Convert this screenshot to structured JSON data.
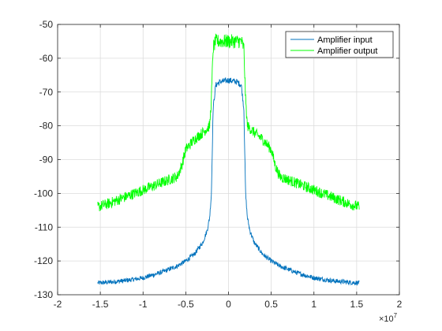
{
  "chart_data": {
    "type": "line",
    "title": "",
    "xlabel": "",
    "ylabel": "",
    "xlim": [
      -2,
      2
    ],
    "ylim": [
      -130,
      -50
    ],
    "x_multiplier": "×10",
    "x_multiplier_exp": "7",
    "xticks": [
      -2,
      -1.5,
      -1,
      -0.5,
      0,
      0.5,
      1,
      1.5,
      2
    ],
    "xtick_labels": [
      "-2",
      "-1.5",
      "-1",
      "-0.5",
      "0",
      "0.5",
      "1",
      "1.5",
      "2"
    ],
    "yticks": [
      -50,
      -60,
      -70,
      -80,
      -90,
      -100,
      -110,
      -120,
      -130
    ],
    "ytick_labels": [
      "-50",
      "-60",
      "-70",
      "-80",
      "-90",
      "-100",
      "-110",
      "-120",
      "-130"
    ],
    "grid": true,
    "legend_position": "top-right",
    "series": [
      {
        "name": "Amplifier input",
        "color": "#0072BD",
        "x": [
          -1.53,
          -1.4,
          -1.2,
          -1.0,
          -0.8,
          -0.6,
          -0.5,
          -0.4,
          -0.3,
          -0.25,
          -0.22,
          -0.2,
          -0.18,
          -0.15,
          -0.1,
          0.0,
          0.1,
          0.15,
          0.18,
          0.2,
          0.22,
          0.25,
          0.3,
          0.4,
          0.5,
          0.6,
          0.8,
          1.0,
          1.2,
          1.4,
          1.53
        ],
        "y": [
          -126.5,
          -126.3,
          -125.8,
          -125.0,
          -123.5,
          -121.5,
          -120.0,
          -118.0,
          -114.5,
          -111.0,
          -107.0,
          -100.0,
          -75.0,
          -68.0,
          -67.0,
          -66.5,
          -67.0,
          -68.0,
          -75.0,
          -100.0,
          -107.0,
          -111.0,
          -114.5,
          -118.0,
          -120.0,
          -121.5,
          -123.5,
          -125.0,
          -125.8,
          -126.3,
          -126.5
        ],
        "noise": 0.7
      },
      {
        "name": "Amplifier output",
        "color": "#00FF00",
        "x": [
          -1.53,
          -1.4,
          -1.2,
          -1.0,
          -0.8,
          -0.6,
          -0.55,
          -0.5,
          -0.4,
          -0.3,
          -0.22,
          -0.2,
          -0.18,
          -0.15,
          -0.1,
          0.0,
          0.1,
          0.15,
          0.18,
          0.2,
          0.22,
          0.3,
          0.4,
          0.5,
          0.55,
          0.6,
          0.8,
          1.0,
          1.2,
          1.4,
          1.53
        ],
        "y": [
          -104.0,
          -103.0,
          -101.0,
          -99.0,
          -97.0,
          -95.0,
          -92.0,
          -87.0,
          -84.0,
          -82.0,
          -80.0,
          -72.0,
          -57.0,
          -55.0,
          -55.0,
          -55.0,
          -55.0,
          -55.0,
          -57.0,
          -72.0,
          -80.0,
          -82.0,
          -84.0,
          -87.0,
          -92.0,
          -95.0,
          -97.0,
          -99.0,
          -101.0,
          -103.0,
          -104.0
        ],
        "noise": 1.6
      }
    ]
  }
}
